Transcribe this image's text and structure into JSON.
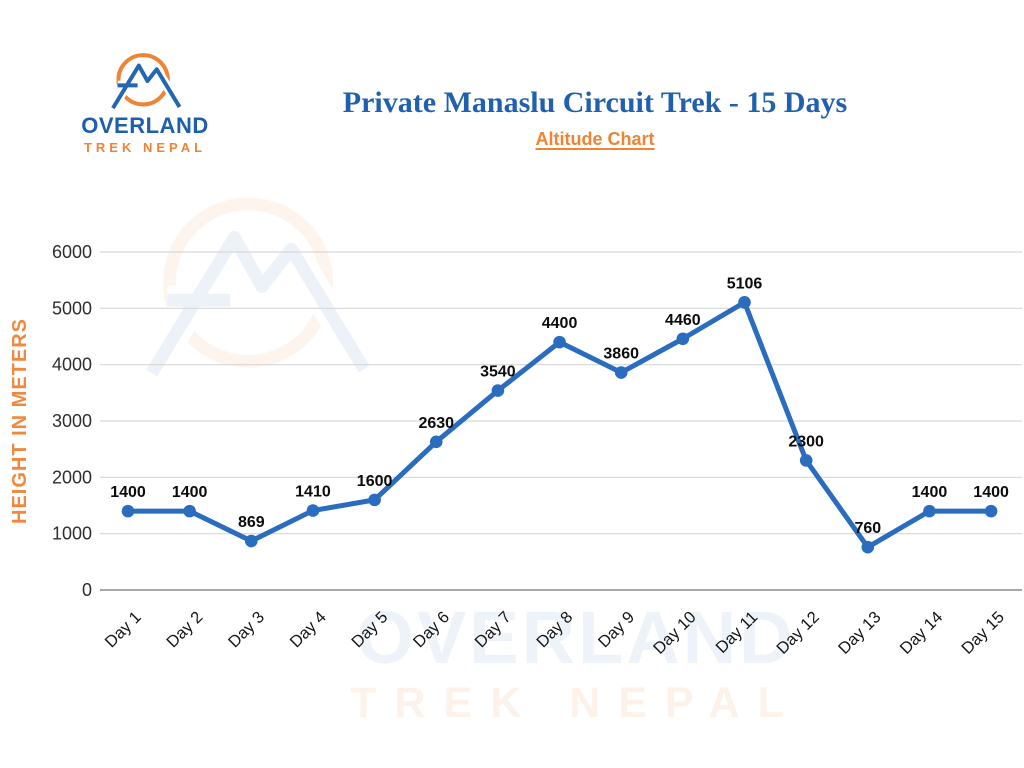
{
  "brand": {
    "name_line1": "OVERLAND",
    "name_line2": "TREK NEPAL",
    "blue": "#1d5fae",
    "orange": "#ee8434"
  },
  "header": {
    "title": "Private Manaslu Circuit Trek  - 15 Days",
    "subtitle": "Altitude Chart"
  },
  "watermark": {
    "line1": "OVERLAND",
    "line2": "TREK NEPAL"
  },
  "chart_data": {
    "type": "line",
    "title": "Altitude Chart",
    "xlabel": "",
    "ylabel": "HEIGHT IN METERS",
    "categories": [
      "Day 1",
      "Day 2",
      "Day 3",
      "Day 4",
      "Day 5",
      "Day 6",
      "Day 7",
      "Day 8",
      "Day 9",
      "Day 10",
      "Day 11",
      "Day 12",
      "Day 13",
      "Day 14",
      "Day 15"
    ],
    "values": [
      1400,
      1400,
      869,
      1410,
      1600,
      2630,
      3540,
      4400,
      3860,
      4460,
      5106,
      2300,
      760,
      1400,
      1400
    ],
    "ylim": [
      0,
      6000
    ],
    "ytick_step": 1000,
    "grid": true,
    "legend_position": "none",
    "data_labels": true,
    "colors": {
      "line": "#2a6cbe",
      "marker": "#2a6cbe",
      "grid": "#d7d7d7",
      "axis_line": "#9b9b9b",
      "tick_text": "#2e2e2e",
      "data_label": "#0c0c0c",
      "ylabel_text": "#f0883f"
    }
  }
}
